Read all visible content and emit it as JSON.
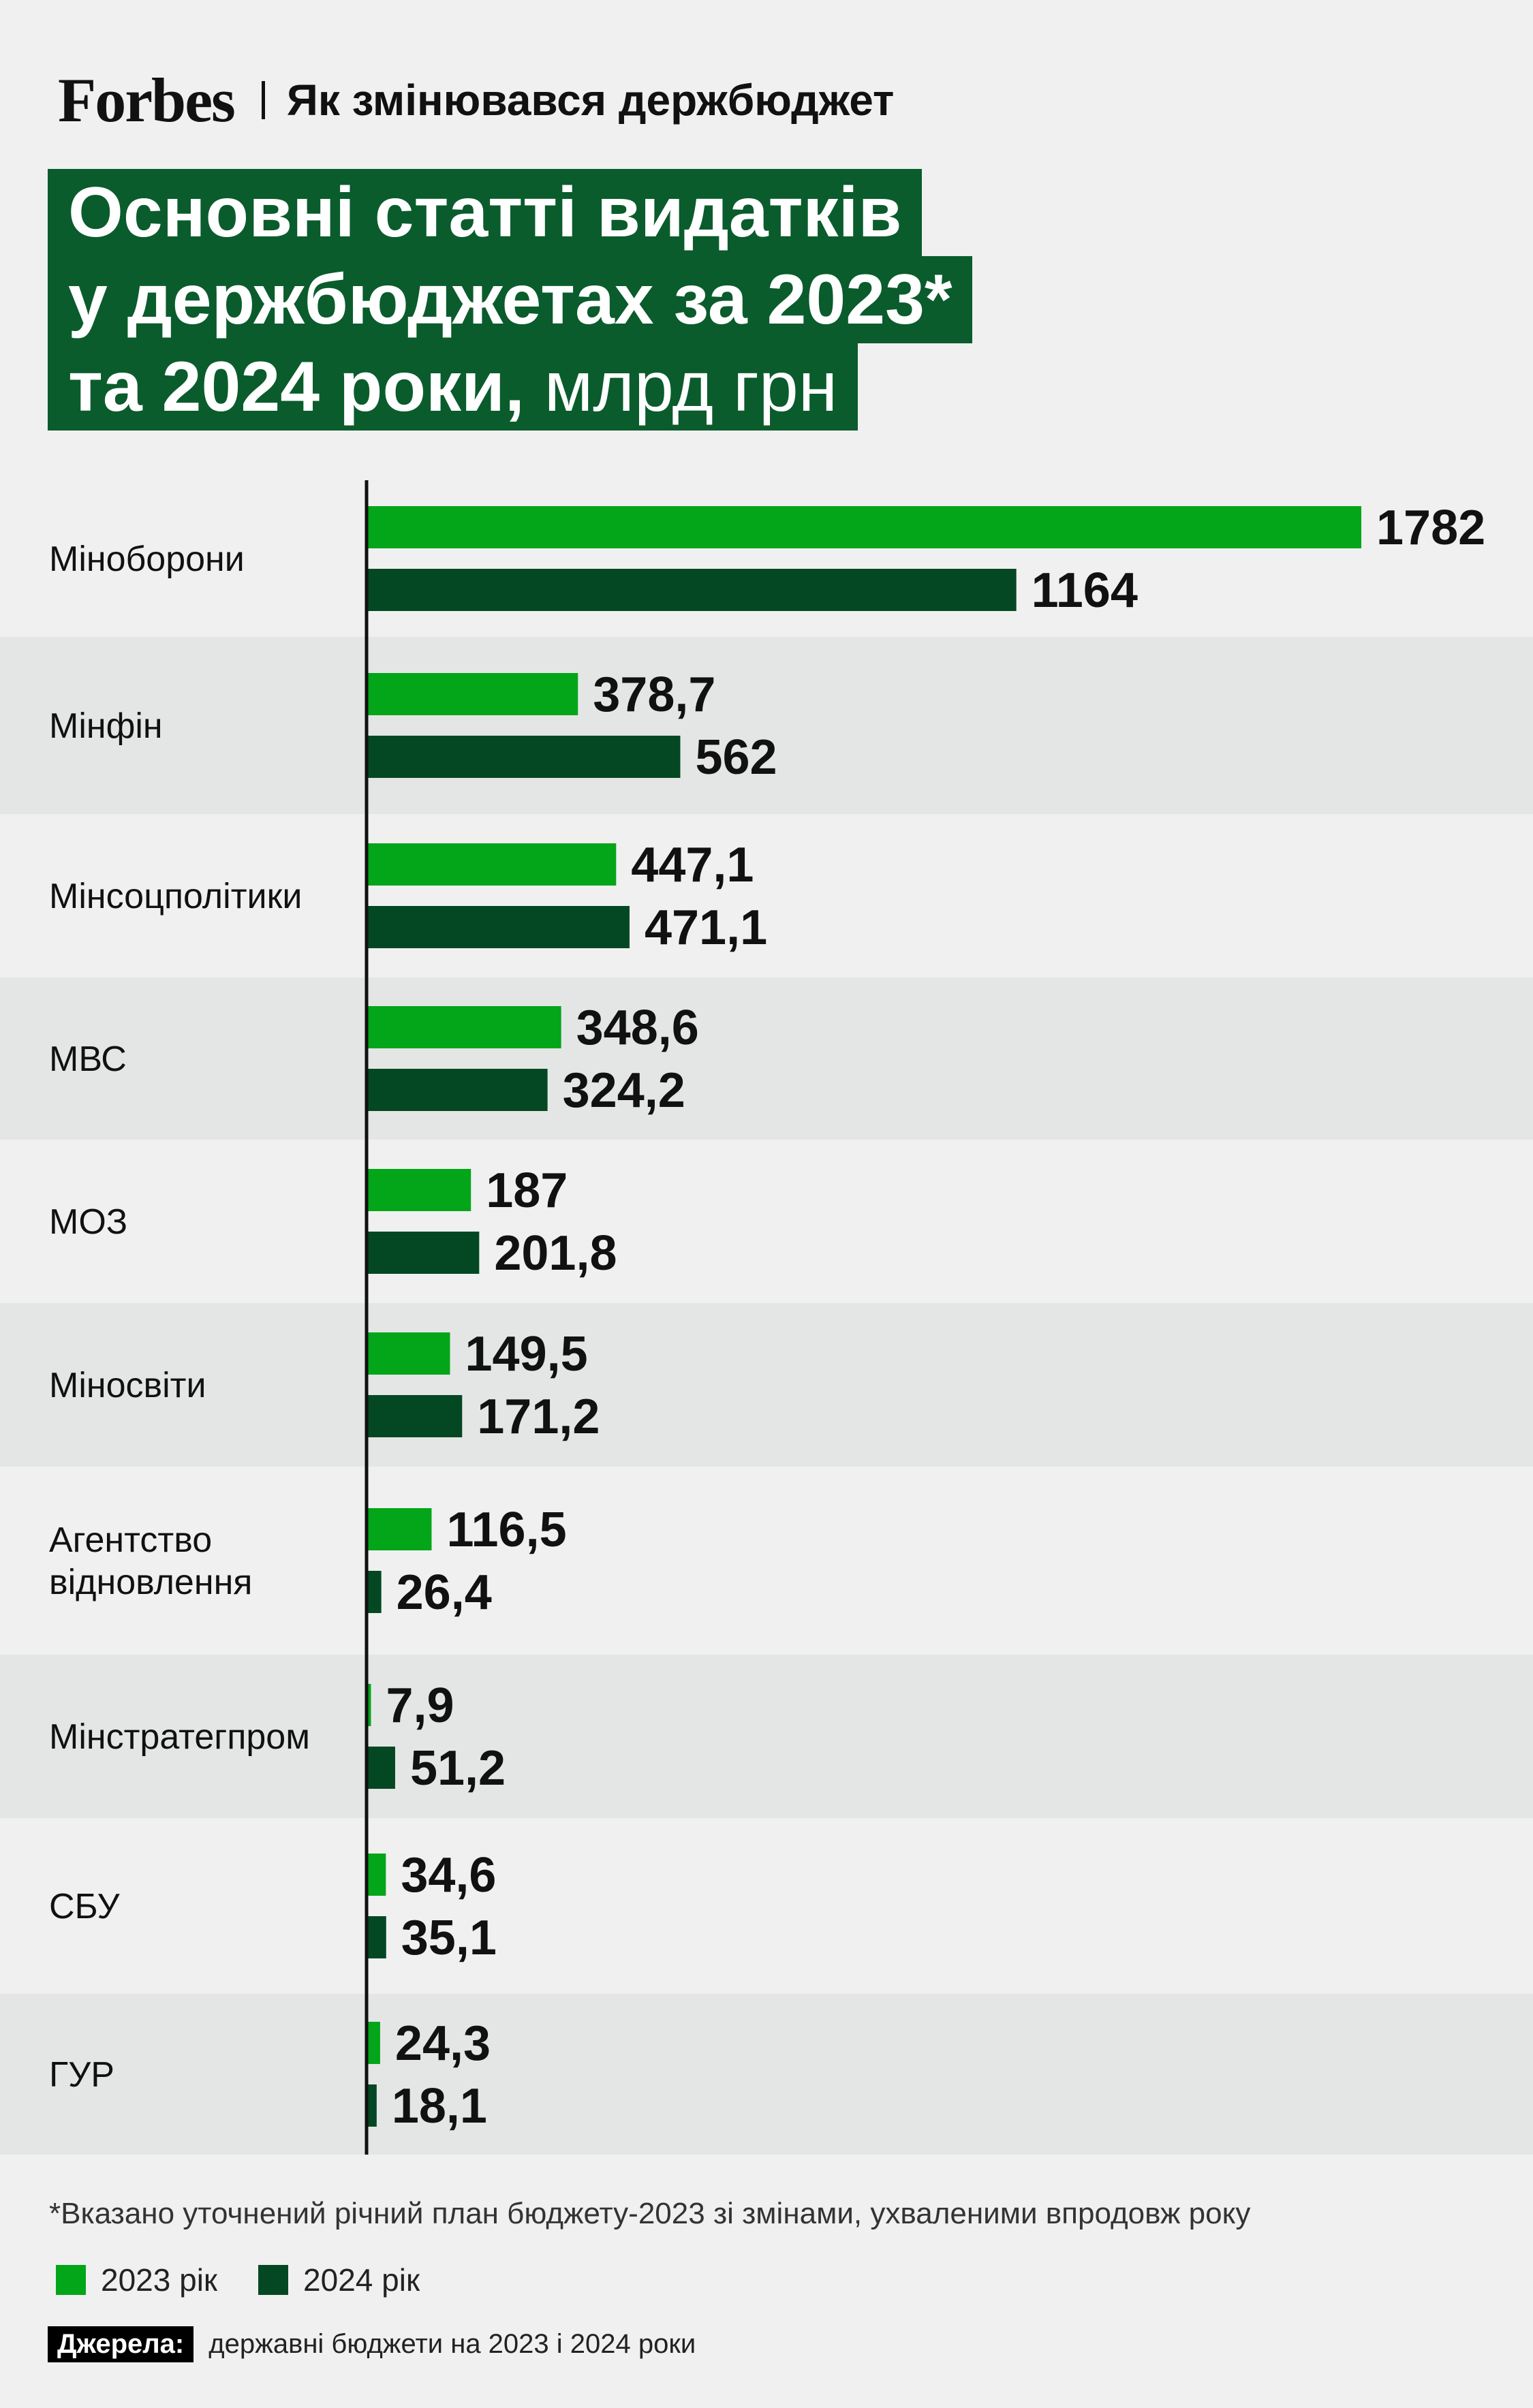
{
  "header": {
    "logo": "Forbes",
    "subtitle": "Як змінювався держбюджет"
  },
  "title": {
    "line1": "Основні статті видатків",
    "line2": "у держбюджетах за 2023*",
    "line3_main": "та 2024 роки,",
    "line3_unit": " млрд грн"
  },
  "colors": {
    "series_2023": "#03a519",
    "series_2024": "#034822",
    "title_bg": "#0a5c2c",
    "band": "#e4e6e5",
    "background": "#f0f0f0"
  },
  "chart_data": {
    "type": "bar",
    "orientation": "horizontal",
    "categories": [
      [
        "Міноборони"
      ],
      [
        "Мінфін"
      ],
      [
        "Мінсоцполітики"
      ],
      [
        "МВС"
      ],
      [
        "МОЗ"
      ],
      [
        "Міносвіти"
      ],
      [
        "Агентство",
        "відновлення"
      ],
      [
        "Мінстратегпром"
      ],
      [
        "СБУ"
      ],
      [
        "ГУР"
      ]
    ],
    "series": [
      {
        "name": "2023 рік",
        "values": [
          1782,
          378.7,
          447.1,
          348.6,
          187,
          149.5,
          116.5,
          7.9,
          34.6,
          24.3
        ],
        "labels": [
          "1782",
          "378,7",
          "447,1",
          "348,6",
          "187",
          "149,5",
          "116,5",
          "7,9",
          "34,6",
          "24,3"
        ]
      },
      {
        "name": "2024 рік",
        "values": [
          1164,
          562,
          471.1,
          324.2,
          201.8,
          171.2,
          26.4,
          51.2,
          35.1,
          18.1
        ],
        "labels": [
          "1164",
          "562",
          "471,1",
          "324,2",
          "201,8",
          "171,2",
          "26,4",
          "51,2",
          "35,1",
          "18,1"
        ]
      }
    ],
    "xlim": [
      0,
      1782
    ],
    "grid": false,
    "legend": "bottom-left"
  },
  "footnote": "*Вказано уточнений річний план бюджету-2023 зі змінами, ухваленими впродовж року",
  "legend": {
    "item_2023": "2023 рік",
    "item_2024": "2024 рік"
  },
  "source": {
    "label": "Джерела:",
    "text": "державні бюджети на 2023 і 2024 роки"
  }
}
